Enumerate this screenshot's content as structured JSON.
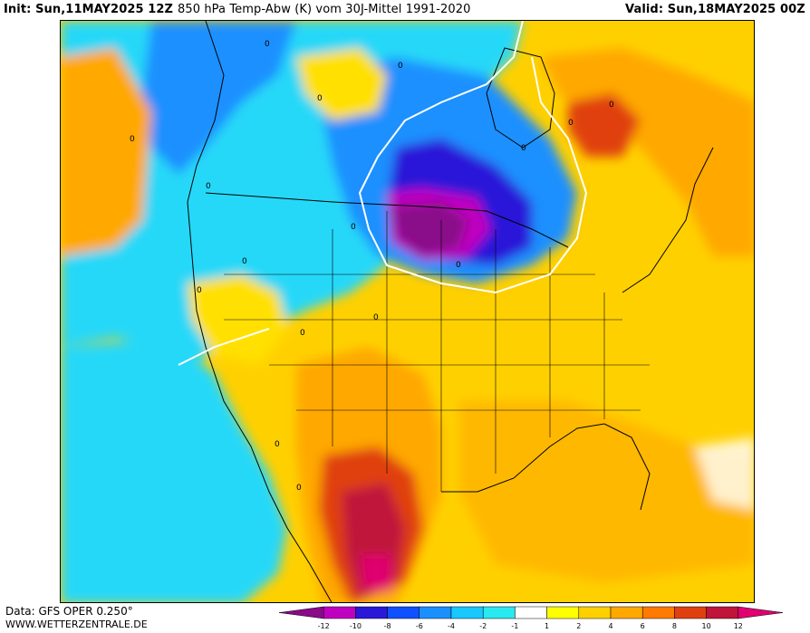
{
  "header": {
    "init": "Init: Sun,11MAY2025 12Z",
    "title": "850 hPa Temp-Abw (K) vom 30J-Mittel 1991-2020",
    "valid": "Valid: Sun,18MAY2025 00Z"
  },
  "footer": {
    "data_source": "Data: GFS OPER 0.250°",
    "website": "WWW.WETTERZENTRALE.DE"
  },
  "legend": {
    "ticks": [
      "-12",
      "-10",
      "-8",
      "-6",
      "-4",
      "-2",
      "-1",
      "1",
      "2",
      "4",
      "6",
      "8",
      "10",
      "12"
    ],
    "colors": [
      "#8a0a8a",
      "#c000c0",
      "#2a18d8",
      "#1050ff",
      "#1a90ff",
      "#18c8ff",
      "#28e8f0",
      "#ffffff",
      "#ffff00",
      "#ffd000",
      "#ffa800",
      "#ff7a00",
      "#e04010",
      "#c0143a",
      "#e00070"
    ]
  },
  "map": {
    "field": "850 hPa temperature anomaly (K)",
    "contour_labels": [
      "0",
      "0",
      "0",
      "0",
      "0",
      "0",
      "0",
      "0",
      "0",
      "0",
      "0",
      "0",
      "0",
      "0",
      "0",
      "0"
    ]
  }
}
